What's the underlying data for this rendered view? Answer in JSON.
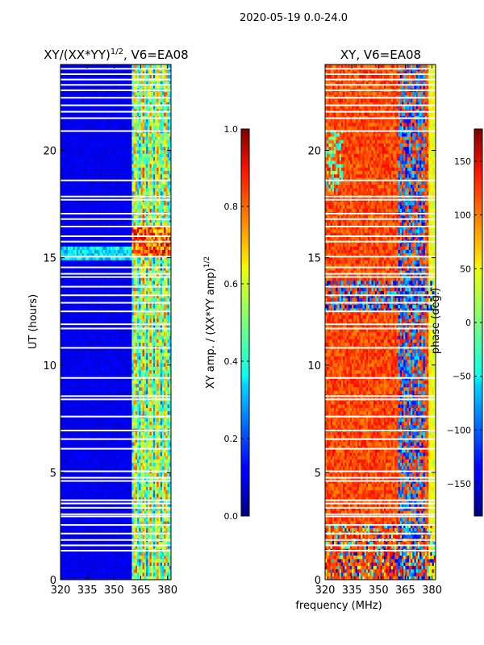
{
  "figure": {
    "suptitle": "2020-05-19 0.0-24.0",
    "xlabel": "frequency (MHz)"
  },
  "chart_data": [
    {
      "type": "heatmap",
      "title": "XY/(XX*YY)",
      "title_exponent": "1/2",
      "title_suffix": ", V6=EA08",
      "xlabel": "",
      "ylabel": "UT (hours)",
      "xlim": [
        320,
        382
      ],
      "ylim": [
        0,
        24
      ],
      "xticks": [
        320,
        335,
        350,
        365,
        380
      ],
      "yticks": [
        0,
        5,
        10,
        15,
        20
      ],
      "colorbar": {
        "label": "XY amp. / (XX*YY amp)",
        "label_exponent": "1/2",
        "range": [
          0.0,
          1.0
        ],
        "ticks": [
          "0.0",
          "0.2",
          "0.4",
          "0.6",
          "0.8",
          "1.0"
        ]
      },
      "colormap": "jet",
      "content": "normalized cross-correlation amplitude; mostly low (~0.1) below 360 MHz, bright (~0.4-0.8) band between ~361-381 MHz; horizontal white flagged gaps"
    },
    {
      "type": "heatmap",
      "title": "XY, V6=EA08",
      "xlabel": "",
      "ylabel": "",
      "xlim": [
        320,
        382
      ],
      "ylim": [
        0,
        24
      ],
      "xticks": [
        320,
        335,
        350,
        365,
        380
      ],
      "yticks": [
        0,
        5,
        10,
        15,
        20
      ],
      "colorbar": {
        "label": "phase (deg.)",
        "range": [
          -180,
          180
        ],
        "ticks": [
          "−150",
          "−100",
          "−50",
          "0",
          "50",
          "100",
          "150"
        ]
      },
      "colormap": "jet",
      "content": "cross-correlation phase; predominantly 100-150 deg (orange/red) with blue/cyan patches at ~360-375 MHz; horizontal white flagged gaps"
    }
  ],
  "flag_gaps_hours": [
    1.35,
    1.6,
    1.85,
    2.15,
    2.55,
    2.95,
    3.05,
    3.35,
    3.55,
    3.7,
    4.6,
    4.75,
    5.05,
    6.1,
    6.55,
    6.95,
    7.6,
    8.4,
    8.55,
    9.4,
    10.8,
    11.7,
    11.9,
    12.5,
    12.9,
    13.25,
    13.65,
    14.1,
    14.25,
    14.55,
    15.05,
    15.75,
    16.0,
    16.45,
    16.8,
    17.05,
    17.7,
    17.85,
    18.6,
    20.9,
    21.5,
    21.8,
    22.1,
    22.45,
    22.8,
    23.05,
    23.3,
    23.55,
    23.8
  ]
}
